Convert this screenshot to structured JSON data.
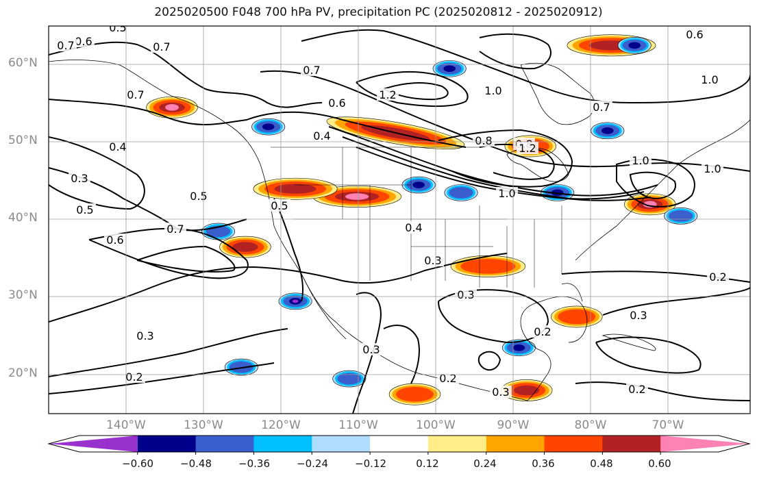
{
  "title": "2025020500 F048 700 hPa PV, precipitation PC (2025020812 - 2025020912)",
  "map": {
    "projection": "cylindrical",
    "lon_range": [
      -150,
      -59
    ],
    "lat_range": [
      15,
      65
    ],
    "lat_ticks": [
      "60°N",
      "50°N",
      "40°N",
      "30°N",
      "20°N"
    ],
    "lon_ticks": [
      "140°W",
      "130°W",
      "120°W",
      "110°W",
      "100°W",
      "90°W",
      "80°W",
      "70°W"
    ],
    "grid": true,
    "features": [
      "coastlines",
      "country borders",
      "US state borders"
    ]
  },
  "contours": {
    "field": "700 hPa PV",
    "color": "#000000",
    "labels": [
      {
        "text": "0.6"
      },
      {
        "text": "0.7"
      },
      {
        "text": "0.5"
      },
      {
        "text": "0.7"
      },
      {
        "text": "0.7"
      },
      {
        "text": "0.7"
      },
      {
        "text": "0.6"
      },
      {
        "text": "1.2"
      },
      {
        "text": "1.0"
      },
      {
        "text": "0.8"
      },
      {
        "text": "0.6"
      },
      {
        "text": "1.0"
      },
      {
        "text": "0.4"
      },
      {
        "text": "0.3"
      },
      {
        "text": "0.5"
      },
      {
        "text": "0.6"
      },
      {
        "text": "0.7"
      },
      {
        "text": "0.5"
      },
      {
        "text": "0.4"
      },
      {
        "text": "0.8"
      },
      {
        "text": "1.2"
      },
      {
        "text": "1.0"
      },
      {
        "text": "1.0"
      },
      {
        "text": "1.0"
      },
      {
        "text": "0.4"
      },
      {
        "text": "0.3"
      },
      {
        "text": "0.3"
      },
      {
        "text": "0.2"
      },
      {
        "text": "0.3"
      },
      {
        "text": "0.3"
      },
      {
        "text": "0.2"
      },
      {
        "text": "0.2"
      },
      {
        "text": "0.3"
      },
      {
        "text": "0.2"
      },
      {
        "text": "0.3"
      },
      {
        "text": "0.2"
      },
      {
        "text": "0.5"
      },
      {
        "text": "0.7"
      }
    ]
  },
  "shading": {
    "field": "precipitation PC",
    "regions": [
      {
        "lon": -105,
        "lat": 51.2,
        "sign": "positive",
        "peak": 0.48
      },
      {
        "lon": -110,
        "lat": 43,
        "sign": "positive",
        "peak": 0.6
      },
      {
        "lon": -118,
        "lat": 44,
        "sign": "positive",
        "peak": 0.48
      },
      {
        "lon": -134,
        "lat": 54.5,
        "sign": "positive",
        "peak": 0.6
      },
      {
        "lon": -124.5,
        "lat": 36.5,
        "sign": "positive",
        "peak": 0.48
      },
      {
        "lon": -72,
        "lat": 42,
        "sign": "positive",
        "peak": 0.6
      },
      {
        "lon": -77,
        "lat": 62.5,
        "sign": "positive",
        "peak": 0.48
      },
      {
        "lon": -93,
        "lat": 34,
        "sign": "positive",
        "peak": 0.36
      },
      {
        "lon": -87.5,
        "lat": 49.5,
        "sign": "positive",
        "peak": 0.36
      },
      {
        "lon": -81.5,
        "lat": 27.5,
        "sign": "positive",
        "peak": 0.36
      },
      {
        "lon": -88,
        "lat": 18,
        "sign": "positive",
        "peak": 0.48
      },
      {
        "lon": -102.5,
        "lat": 17.5,
        "sign": "positive",
        "peak": 0.36
      },
      {
        "lon": -98,
        "lat": 59.5,
        "sign": "negative",
        "peak": -0.48
      },
      {
        "lon": -118,
        "lat": 29.5,
        "sign": "negative",
        "peak": -0.6
      },
      {
        "lon": -102,
        "lat": 44.5,
        "sign": "negative",
        "peak": -0.48
      },
      {
        "lon": -96.5,
        "lat": 43.5,
        "sign": "negative",
        "peak": -0.36
      },
      {
        "lon": -84,
        "lat": 43.5,
        "sign": "negative",
        "peak": -0.48
      },
      {
        "lon": -74,
        "lat": 62.5,
        "sign": "negative",
        "peak": -0.48
      },
      {
        "lon": -77.5,
        "lat": 51.5,
        "sign": "negative",
        "peak": -0.48
      },
      {
        "lon": -121.5,
        "lat": 52,
        "sign": "negative",
        "peak": -0.48
      },
      {
        "lon": -89,
        "lat": 23.5,
        "sign": "negative",
        "peak": -0.48
      },
      {
        "lon": -125,
        "lat": 21,
        "sign": "negative",
        "peak": -0.36
      },
      {
        "lon": -111,
        "lat": 19.5,
        "sign": "negative",
        "peak": -0.36
      },
      {
        "lon": -68,
        "lat": 40.5,
        "sign": "negative",
        "peak": -0.36
      },
      {
        "lon": -128,
        "lat": 38.5,
        "sign": "negative",
        "peak": -0.36
      }
    ]
  },
  "colorbar": {
    "ticks": [
      "−0.60",
      "−0.48",
      "−0.36",
      "−0.24",
      "−0.12",
      "0.12",
      "0.24",
      "0.36",
      "0.48",
      "0.60"
    ],
    "colors": [
      "#9932cc",
      "#00008b",
      "#3a5fcd",
      "#00bfff",
      "#afdcff",
      "#ffffff",
      "#ffee88",
      "#ffa500",
      "#ff4500",
      "#b22222",
      "#ff82b4"
    ]
  }
}
